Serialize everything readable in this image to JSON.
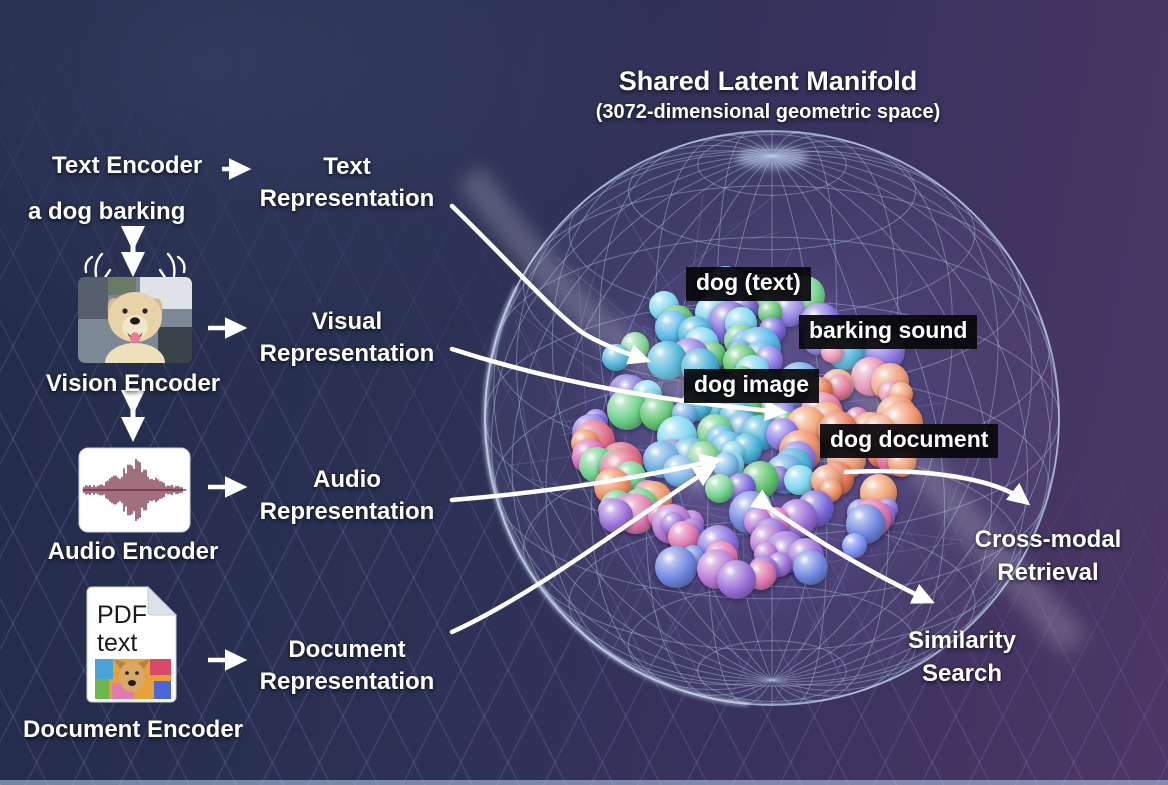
{
  "title": {
    "main": "Shared Latent Manifold",
    "subtitle": "(3072-dimensional geometric space)"
  },
  "encoders": {
    "text_label": "Text Encoder",
    "text_input": "a dog barking",
    "vision_label": "Vision Encoder",
    "audio_label": "Audio Encoder",
    "document_label": "Document Encoder"
  },
  "pdf": {
    "line1": "PDF",
    "line2": "text"
  },
  "representations": {
    "text": [
      "Text",
      "Representation"
    ],
    "visual": [
      "Visual",
      "Representation"
    ],
    "audio": [
      "Audio",
      "Representation"
    ],
    "document": [
      "Document",
      "Representation"
    ]
  },
  "cluster_labels": {
    "text": "dog (text)",
    "audio": "barking sound",
    "image": "dog image",
    "document": "dog document"
  },
  "outputs": {
    "cross_modal": [
      "Cross-modal",
      "Retrieval"
    ],
    "similarity": [
      "Similarity",
      "Search"
    ]
  },
  "colors": {
    "bg_left": "#232b4a",
    "bg_right": "#4d3766",
    "wireframe": "#a9c0dd",
    "rim_glow": "#dceaff",
    "arrow": "#ffffff",
    "label_bg": "#08080b",
    "waveform": "#6e2238",
    "cluster_palette": {
      "core": [
        "#5fc46f",
        "#58b7e8",
        "#7a67da",
        "#6fd08a",
        "#66a9e2",
        "#8f7ce6",
        "#49b2d8",
        "#7fd6f0"
      ],
      "right": [
        "#ef8f63",
        "#e87a56",
        "#e786ae",
        "#ef9d78",
        "#df6f92",
        "#f0a070"
      ],
      "bottom": [
        "#8a6fe0",
        "#b97ad4",
        "#e07ab2",
        "#6f86e0",
        "#9b6fd8",
        "#7a8ff0"
      ],
      "left_accent": [
        "#e06a84",
        "#ef8f63",
        "#d96ab8",
        "#6fd08a"
      ]
    }
  }
}
